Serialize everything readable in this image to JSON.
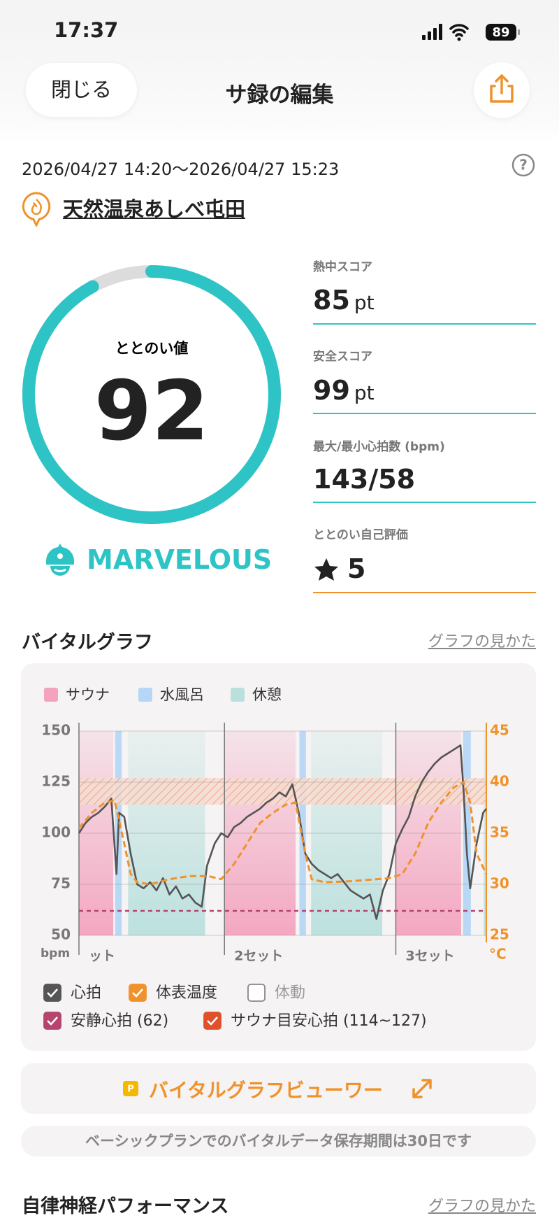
{
  "status_bar": {
    "time": "17:37",
    "battery": "89"
  },
  "header": {
    "close": "閉じる",
    "title": "サ録の編集"
  },
  "session": {
    "period": "2026/04/27 14:20～2026/04/27 15:23",
    "facility": "天然温泉あしべ屯田"
  },
  "score": {
    "label": "ととのい値",
    "value": 92,
    "gauge_range": [
      0,
      100
    ],
    "rating": "MARVELOUS"
  },
  "stats": [
    {
      "label": "熱中スコア",
      "value": 85,
      "unit": "pt"
    },
    {
      "label": "安全スコア",
      "value": 99,
      "unit": "pt"
    },
    {
      "label": "最大/最小心拍数 (bpm)",
      "value": "143/58"
    },
    {
      "label": "ととのい自己評価",
      "value": 5
    }
  ],
  "vital_section": {
    "title": "バイタルグラフ",
    "link": "グラフの見かた"
  },
  "chart_data": {
    "type": "line",
    "phases": [
      {
        "name": "サウナ",
        "color": "#f4a3bf"
      },
      {
        "name": "水風呂",
        "color": "#b5d6f6"
      },
      {
        "name": "休憩",
        "color": "#b9e0dd"
      }
    ],
    "regions": [
      {
        "phase": 0,
        "start": 0,
        "end": 5.3
      },
      {
        "phase": 1,
        "start": 5.6,
        "end": 6.6
      },
      {
        "phase": 2,
        "start": 7.6,
        "end": 19.5
      },
      {
        "phase": 0,
        "start": 22.5,
        "end": 33.5
      },
      {
        "phase": 1,
        "start": 34.1,
        "end": 35.1
      },
      {
        "phase": 2,
        "start": 35.9,
        "end": 46.9
      },
      {
        "phase": 0,
        "start": 49,
        "end": 59.1
      },
      {
        "phase": 1,
        "start": 59.4,
        "end": 60.6
      },
      {
        "phase": 2,
        "start": 62.6,
        "end": 63
      }
    ],
    "xlim": [
      0,
      63
    ],
    "xticks": [
      {
        "value": 0,
        "label": "ット"
      },
      {
        "value": 22.5,
        "label": "2セット"
      },
      {
        "value": 49,
        "label": "3セット"
      }
    ],
    "ylim": [
      50,
      150
    ],
    "yticks": [
      50,
      75,
      100,
      125,
      150
    ],
    "y2lim": [
      25,
      45
    ],
    "y2ticks": [
      25,
      30,
      35,
      40,
      45
    ],
    "y_unit": "bpm",
    "y2_unit": "°C",
    "y2_color": "#f0922b",
    "series": [
      {
        "name": "心拍",
        "color": "#555555",
        "checked": true,
        "x": [
          0,
          1,
          2,
          3,
          4,
          5,
          5.8,
          6.2,
          7,
          8,
          9,
          10,
          11,
          12,
          13,
          14,
          15,
          16,
          17,
          18,
          19,
          19.8,
          21,
          22,
          23,
          24,
          25,
          26,
          27,
          28,
          29,
          30,
          31,
          32,
          33,
          34,
          35,
          36,
          37,
          38,
          39,
          40,
          41,
          42,
          43,
          44,
          45,
          46,
          47,
          48,
          49,
          50,
          51,
          52,
          53,
          54,
          55,
          56,
          57,
          58,
          59,
          59.5,
          60,
          60.5,
          61.5,
          62.5,
          63
        ],
        "values": [
          100,
          105,
          108,
          110,
          113,
          117,
          80,
          110,
          108,
          90,
          75,
          73,
          76,
          72,
          78,
          70,
          74,
          68,
          70,
          66,
          64,
          84,
          95,
          100,
          98,
          103,
          105,
          108,
          110,
          112,
          115,
          117,
          120,
          118,
          124,
          110,
          90,
          85,
          82,
          80,
          78,
          80,
          76,
          72,
          70,
          68,
          70,
          58,
          72,
          80,
          95,
          102,
          108,
          118,
          125,
          130,
          134,
          137,
          139,
          141,
          143,
          120,
          90,
          73,
          95,
          110,
          112
        ]
      },
      {
        "name": "体表温度",
        "color": "#f0922b",
        "checked": true,
        "axis": "y2",
        "dashed": true,
        "x": [
          0,
          2,
          4,
          5.5,
          7,
          8,
          9,
          11,
          14,
          17,
          20,
          22,
          24,
          26,
          28,
          30,
          32,
          33.5,
          35,
          36,
          38,
          42,
          46,
          48,
          50,
          52,
          54,
          56,
          58,
          59.5,
          60.5,
          61.5,
          63
        ],
        "values": [
          35.5,
          37,
          38,
          38.2,
          34,
          31,
          30.2,
          30,
          30.5,
          30.8,
          30.8,
          30.5,
          32,
          34,
          36,
          37,
          37.8,
          38,
          33,
          30.5,
          30.2,
          30.3,
          30.5,
          30.6,
          31,
          33,
          36,
          38,
          39.5,
          40,
          38,
          33,
          31
        ]
      }
    ],
    "motion_toggle": {
      "label": "体動",
      "checked": false
    },
    "rest_hr": {
      "label": "安静心拍 (62)",
      "value": 62,
      "color": "#b5446e",
      "checked": true
    },
    "target_hr": {
      "label": "サウナ目安心拍 (114~127)",
      "range": [
        114,
        127
      ],
      "color": "#e0502a",
      "checked": true
    }
  },
  "viewer_button": "バイタルグラフビューワー",
  "notice": "ベーシックプランでのバイタルデータ保存期間は30日です",
  "next_section": {
    "title": "自律神経パフォーマンス",
    "link": "グラフの見かた"
  }
}
